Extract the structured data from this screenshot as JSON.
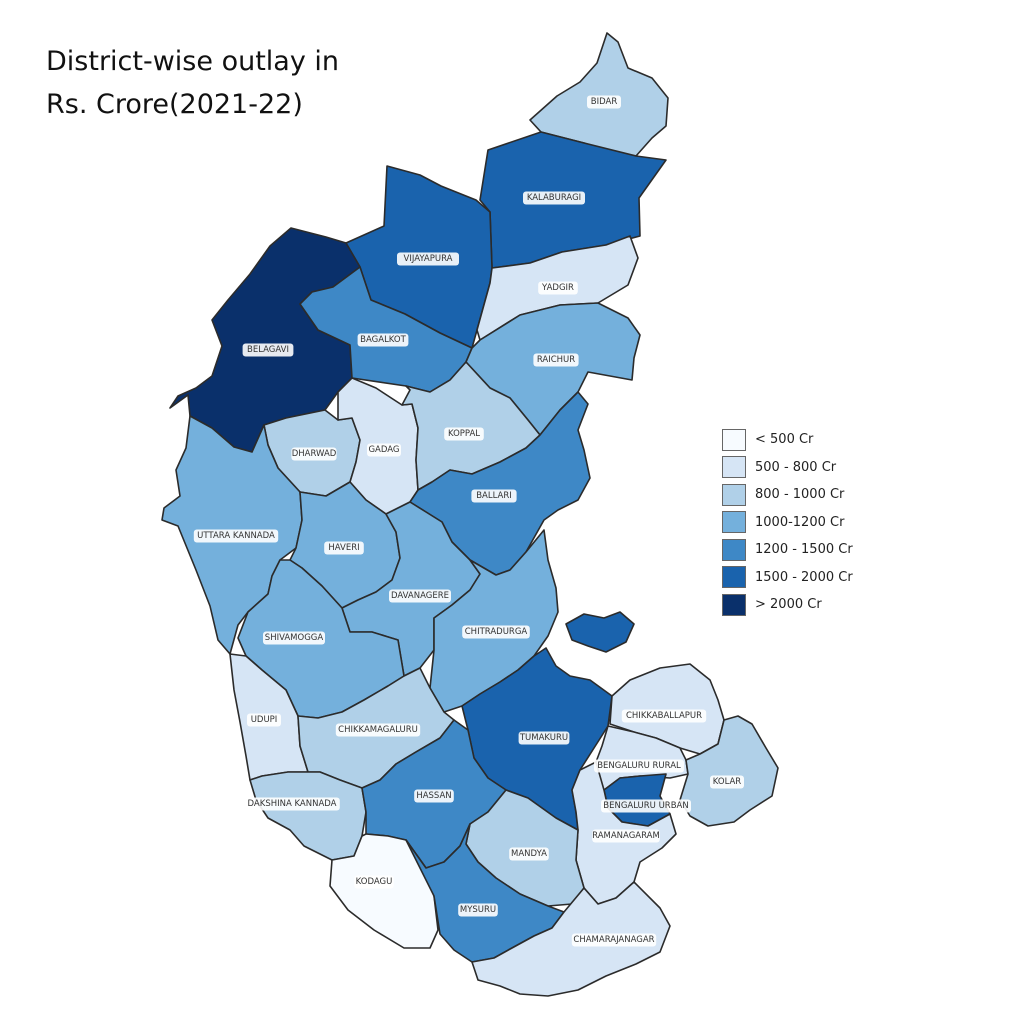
{
  "title": {
    "line1": "District-wise outlay in",
    "line2": "Rs. Crore(2021-22)"
  },
  "legend": [
    {
      "label": "< 500 Cr",
      "color": "#f7fbff"
    },
    {
      "label": "500 - 800 Cr",
      "color": "#d6e5f5"
    },
    {
      "label": "800 - 1000 Cr",
      "color": "#b0d0e8"
    },
    {
      "label": "1000-1200 Cr",
      "color": "#74b0dc"
    },
    {
      "label": "1200 - 1500 Cr",
      "color": "#3e88c6"
    },
    {
      "label": "1500 - 2000 Cr",
      "color": "#1a63ad"
    },
    {
      "label": "> 2000 Cr",
      "color": "#0a306b"
    }
  ],
  "districts": [
    {
      "name": "BIDAR",
      "class": "800 - 1000 Cr"
    },
    {
      "name": "KALABURAGI",
      "class": "1500 - 2000 Cr"
    },
    {
      "name": "VIJAYAPURA",
      "class": "1500 - 2000 Cr"
    },
    {
      "name": "YADGIR",
      "class": "500 - 800 Cr"
    },
    {
      "name": "BELAGAVI",
      "class": "> 2000 Cr"
    },
    {
      "name": "BAGALKOT",
      "class": "1200 - 1500 Cr"
    },
    {
      "name": "RAICHUR",
      "class": "1000-1200 Cr"
    },
    {
      "name": "DHARWAD",
      "class": "800 - 1000 Cr"
    },
    {
      "name": "GADAG",
      "class": "500 - 800 Cr"
    },
    {
      "name": "KOPPAL",
      "class": "800 - 1000 Cr"
    },
    {
      "name": "BALLARI",
      "class": "1200 - 1500 Cr"
    },
    {
      "name": "UTTARA KANNADA",
      "class": "1000-1200 Cr"
    },
    {
      "name": "HAVERI",
      "class": "1000-1200 Cr"
    },
    {
      "name": "DAVANAGERE",
      "class": "1000-1200 Cr"
    },
    {
      "name": "CHITRADURGA",
      "class": "1000-1200 Cr"
    },
    {
      "name": "SHIVAMOGGA",
      "class": "1000-1200 Cr"
    },
    {
      "name": "UDUPI",
      "class": "500 - 800 Cr"
    },
    {
      "name": "CHIKKAMAGALURU",
      "class": "800 - 1000 Cr"
    },
    {
      "name": "TUMAKURU",
      "class": "1500 - 2000 Cr"
    },
    {
      "name": "CHIKKABALLAPUR",
      "class": "500 - 800 Cr"
    },
    {
      "name": "BENGALURU RURAL",
      "class": "500 - 800 Cr"
    },
    {
      "name": "KOLAR",
      "class": "800 - 1000 Cr"
    },
    {
      "name": "BENGALURU URBAN",
      "class": "1500 - 2000 Cr"
    },
    {
      "name": "DAKSHINA KANNADA",
      "class": "800 - 1000 Cr"
    },
    {
      "name": "HASSAN",
      "class": "1200 - 1500 Cr"
    },
    {
      "name": "RAMANAGARAM",
      "class": "500 - 800 Cr"
    },
    {
      "name": "MANDYA",
      "class": "800 - 1000 Cr"
    },
    {
      "name": "KODAGU",
      "class": "< 500 Cr"
    },
    {
      "name": "MYSURU",
      "class": "1200 - 1500 Cr"
    },
    {
      "name": "CHAMARAJANAGAR",
      "class": "500 - 800 Cr"
    }
  ]
}
